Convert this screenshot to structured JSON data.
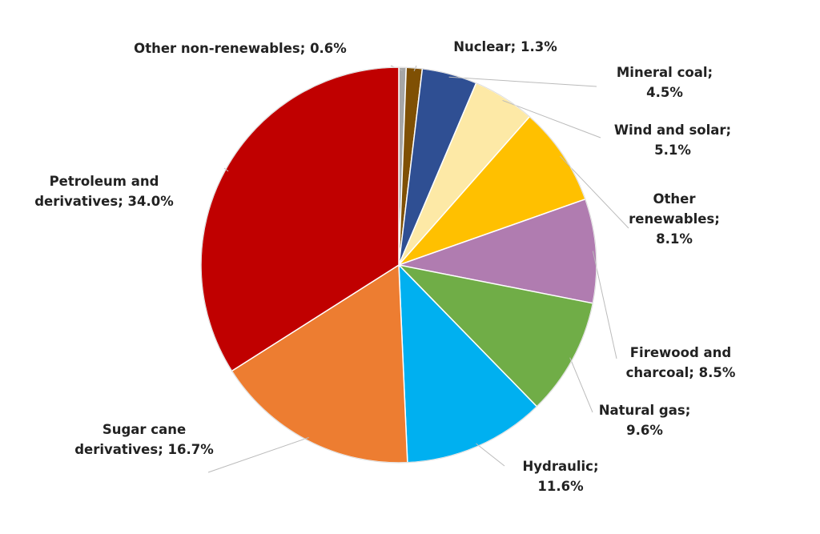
{
  "chart_data": {
    "type": "pie",
    "categories": [
      "Other non-renewables;",
      "Nuclear;",
      "Mineral coal;",
      "Wind and solar;",
      "Other renewables;",
      "Firewood and charcoal;",
      "Natural gas;",
      "Hydraulic;",
      "Sugar cane derivatives;",
      "Petroleum and derivatives;"
    ],
    "values": [
      0.6,
      1.3,
      4.5,
      5.1,
      8.1,
      8.5,
      9.6,
      11.6,
      16.7,
      34.0
    ],
    "value_labels": [
      "0.6%",
      "1.3%",
      "4.5%",
      "5.1%",
      "8.1%",
      "8.5%",
      "9.6%",
      "11.6%",
      "16.7%",
      "34.0%"
    ],
    "colors": [
      "#a6a6a6",
      "#7f5004",
      "#2f4f93",
      "#fde9a6",
      "#ffc000",
      "#b07cb0",
      "#70ad47",
      "#00b0f0",
      "#ed7d31",
      "#c00000"
    ]
  }
}
